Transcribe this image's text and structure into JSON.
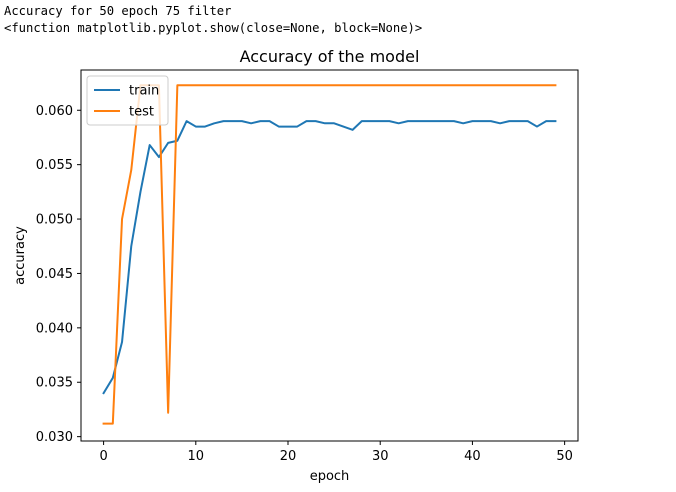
{
  "console": {
    "line1": "Accuracy for 50 epoch 75 filter",
    "line2": "<function matplotlib.pyplot.show(close=None, block=None)>"
  },
  "chart_data": {
    "type": "line",
    "title": "Accuracy of the model",
    "xlabel": "epoch",
    "ylabel": "accuracy",
    "xlim": [
      -2.45,
      51.45
    ],
    "ylim": [
      0.0296,
      0.0637
    ],
    "x_ticks": [
      0,
      10,
      20,
      30,
      40,
      50
    ],
    "y_ticks": [
      0.03,
      0.035,
      0.04,
      0.045,
      0.05,
      0.055,
      0.06
    ],
    "y_tick_labels": [
      "0.030",
      "0.035",
      "0.040",
      "0.045",
      "0.050",
      "0.055",
      "0.060"
    ],
    "grid": false,
    "legend_position": "upper-left",
    "x": [
      0,
      1,
      2,
      3,
      4,
      5,
      6,
      7,
      8,
      9,
      10,
      11,
      12,
      13,
      14,
      15,
      16,
      17,
      18,
      19,
      20,
      21,
      22,
      23,
      24,
      25,
      26,
      27,
      28,
      29,
      30,
      31,
      32,
      33,
      34,
      35,
      36,
      37,
      38,
      39,
      40,
      41,
      42,
      43,
      44,
      45,
      46,
      47,
      48,
      49
    ],
    "series": [
      {
        "name": "train",
        "color": "#1f77b4",
        "values": [
          0.034,
          0.0354,
          0.0387,
          0.0475,
          0.0525,
          0.0568,
          0.0557,
          0.057,
          0.0572,
          0.059,
          0.0585,
          0.0585,
          0.0588,
          0.059,
          0.059,
          0.059,
          0.0588,
          0.059,
          0.059,
          0.0585,
          0.0585,
          0.0585,
          0.059,
          0.059,
          0.0588,
          0.0588,
          0.0585,
          0.0582,
          0.059,
          0.059,
          0.059,
          0.059,
          0.0588,
          0.059,
          0.059,
          0.059,
          0.059,
          0.059,
          0.059,
          0.0588,
          0.059,
          0.059,
          0.059,
          0.0588,
          0.059,
          0.059,
          0.059,
          0.0585,
          0.059,
          0.059
        ]
      },
      {
        "name": "test",
        "color": "#ff7f0e",
        "values": [
          0.0312,
          0.0312,
          0.05,
          0.0545,
          0.0623,
          0.0623,
          0.0623,
          0.0322,
          0.0623,
          0.0623,
          0.0623,
          0.0623,
          0.0623,
          0.0623,
          0.0623,
          0.0623,
          0.0623,
          0.0623,
          0.0623,
          0.0623,
          0.0623,
          0.0623,
          0.0623,
          0.0623,
          0.0623,
          0.0623,
          0.0623,
          0.0623,
          0.0623,
          0.0623,
          0.0623,
          0.0623,
          0.0623,
          0.0623,
          0.0623,
          0.0623,
          0.0623,
          0.0623,
          0.0623,
          0.0623,
          0.0623,
          0.0623,
          0.0623,
          0.0623,
          0.0623,
          0.0623,
          0.0623,
          0.0623,
          0.0623,
          0.0623
        ]
      }
    ]
  }
}
